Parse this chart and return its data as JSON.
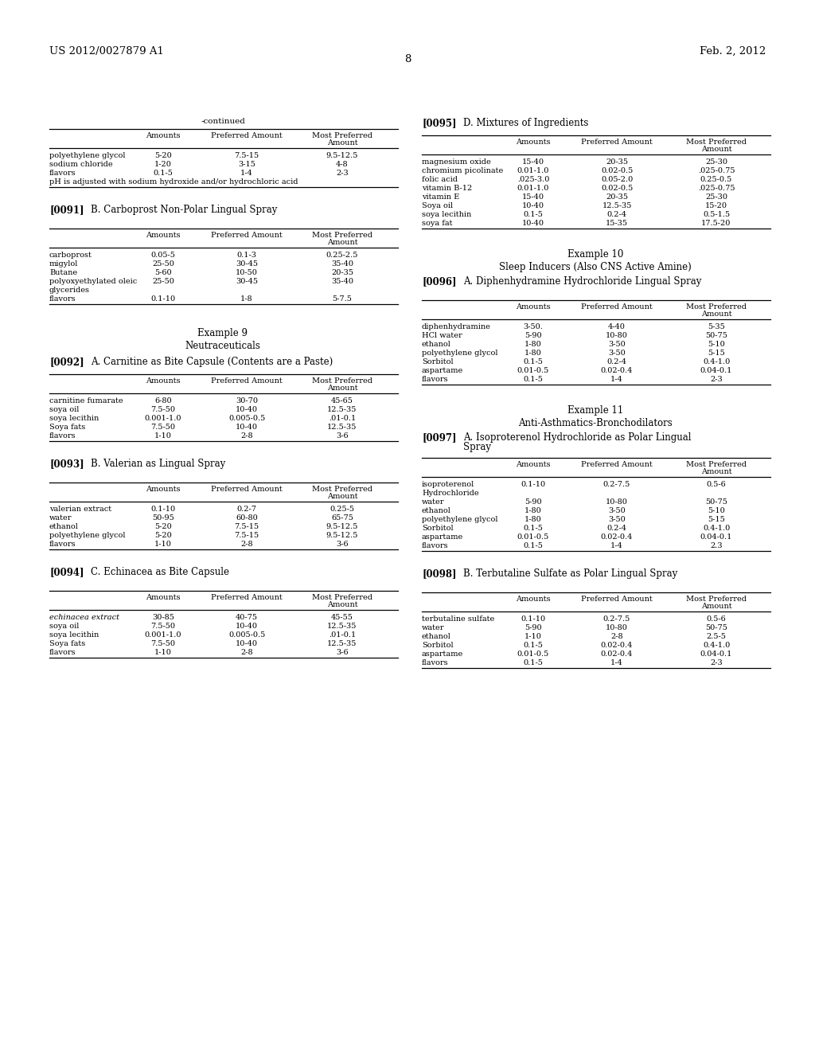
{
  "page_left": "US 2012/0027879 A1",
  "page_center": "8",
  "page_right": "Feb. 2, 2012",
  "bg_color": "#ffffff",
  "left_column": {
    "continued_title": "-continued",
    "continued_table": {
      "rows": [
        [
          "polyethylene glycol",
          "5-20",
          "7.5-15",
          "9.5-12.5"
        ],
        [
          "sodium chloride",
          "1-20",
          "3-15",
          "4-8"
        ],
        [
          "flavors",
          "0.1-5",
          "1-4",
          "2-3"
        ]
      ],
      "footnote": "pH is adjusted with sodium hydroxide and/or hydrochloric acid"
    },
    "section_b": {
      "ref": "[0091]",
      "title": "B. Carboprost Non-Polar Lingual Spray",
      "table_rows": [
        [
          "carboprost",
          "0.05-5",
          "0.1-3",
          "0.25-2.5"
        ],
        [
          "migylol",
          "25-50",
          "30-45",
          "35-40"
        ],
        [
          "Butane",
          "5-60",
          "10-50",
          "20-35"
        ],
        [
          "polyoxyethylated oleic",
          "25-50",
          "30-45",
          "35-40"
        ],
        [
          "glycerides",
          "",
          "",
          ""
        ],
        [
          "flavors",
          "0.1-10",
          "1-8",
          "5-7.5"
        ]
      ]
    },
    "example9": {
      "title": "Example 9",
      "subtitle": "Neutraceuticals",
      "section_a": {
        "ref": "[0092]",
        "title": "A. Carnitine as Bite Capsule (Contents are a Paste)",
        "table_rows": [
          [
            "carnitine fumarate",
            "6-80",
            "30-70",
            "45-65"
          ],
          [
            "soya oil",
            "7.5-50",
            "10-40",
            "12.5-35"
          ],
          [
            "soya lecithin",
            "0.001-1.0",
            "0.005-0.5",
            ".01-0.1"
          ],
          [
            "Soya fats",
            "7.5-50",
            "10-40",
            "12.5-35"
          ],
          [
            "flavors",
            "1-10",
            "2-8",
            "3-6"
          ]
        ]
      },
      "section_b": {
        "ref": "[0093]",
        "title": "B. Valerian as Lingual Spray",
        "table_rows": [
          [
            "valerian extract",
            "0.1-10",
            "0.2-7",
            "0.25-5"
          ],
          [
            "water",
            "50-95",
            "60-80",
            "65-75"
          ],
          [
            "ethanol",
            "5-20",
            "7.5-15",
            "9.5-12.5"
          ],
          [
            "polyethylene glycol",
            "5-20",
            "7.5-15",
            "9.5-12.5"
          ],
          [
            "flavors",
            "1-10",
            "2-8",
            "3-6"
          ]
        ]
      },
      "section_c": {
        "ref": "[0094]",
        "title": "C. Echinacea as Bite Capsule",
        "table_rows": [
          [
            "echinacea extract",
            "30-85",
            "40-75",
            "45-55",
            "italic"
          ],
          [
            "soya oil",
            "7.5-50",
            "10-40",
            "12.5-35"
          ],
          [
            "soya lecithin",
            "0.001-1.0",
            "0.005-0.5",
            ".01-0.1"
          ],
          [
            "Soya fats",
            "7.5-50",
            "10-40",
            "12.5-35"
          ],
          [
            "flavors",
            "1-10",
            "2-8",
            "3-6"
          ]
        ]
      }
    }
  },
  "right_column": {
    "section_d": {
      "ref": "[0095]",
      "title": "D. Mixtures of Ingredients",
      "table_rows": [
        [
          "magnesium oxide",
          "15-40",
          "20-35",
          "25-30"
        ],
        [
          "chromium picolinate",
          "0.01-1.0",
          "0.02-0.5",
          ".025-0.75"
        ],
        [
          "folic acid",
          ".025-3.0",
          "0.05-2.0",
          "0.25-0.5"
        ],
        [
          "vitamin B-12",
          "0.01-1.0",
          "0.02-0.5",
          ".025-0.75"
        ],
        [
          "vitamin E",
          "15-40",
          "20-35",
          "25-30"
        ],
        [
          "Soya oil",
          "10-40",
          "12.5-35",
          "15-20"
        ],
        [
          "soya lecithin",
          "0.1-5",
          "0.2-4",
          "0.5-1.5"
        ],
        [
          "soya fat",
          "10-40",
          "15-35",
          "17.5-20"
        ]
      ]
    },
    "example10": {
      "title": "Example 10",
      "subtitle": "Sleep Inducers (Also CNS Active Amine)",
      "section_a": {
        "ref": "[0096]",
        "title": "A. Diphenhydramine Hydrochloride Lingual Spray",
        "table_rows": [
          [
            "diphenhydramine",
            "3-50.",
            "4-40",
            "5-35"
          ],
          [
            "HCl water",
            "5-90",
            "10-80",
            "50-75"
          ],
          [
            "ethanol",
            "1-80",
            "3-50",
            "5-10"
          ],
          [
            "polyethylene glycol",
            "1-80",
            "3-50",
            "5-15"
          ],
          [
            "Sorbitol",
            "0.1-5",
            "0.2-4",
            "0.4-1.0"
          ],
          [
            "aspartame",
            "0.01-0.5",
            "0.02-0.4",
            "0.04-0.1"
          ],
          [
            "flavors",
            "0.1-5",
            "1-4",
            "2-3"
          ]
        ]
      }
    },
    "example11": {
      "title": "Example 11",
      "subtitle": "Anti-Asthmatics-Bronchodilators",
      "section_a": {
        "ref": "[0097]",
        "title_line1": "A. Isoproterenol Hydrochloride as Polar Lingual",
        "title_line2": "Spray",
        "table_rows": [
          [
            "isoproterenol",
            "0.1-10",
            "0.2-7.5",
            "0.5-6"
          ],
          [
            "Hydrochloride",
            "",
            "",
            ""
          ],
          [
            "water",
            "5-90",
            "10-80",
            "50-75"
          ],
          [
            "ethanol",
            "1-80",
            "3-50",
            "5-10"
          ],
          [
            "polyethylene glycol",
            "1-80",
            "3-50",
            "5-15"
          ],
          [
            "Sorbitol",
            "0.1-5",
            "0.2-4",
            "0.4-1.0"
          ],
          [
            "aspartame",
            "0.01-0.5",
            "0.02-0.4",
            "0.04-0.1"
          ],
          [
            "flavors",
            "0.1-5",
            "1-4",
            "2.3"
          ]
        ]
      },
      "section_b": {
        "ref": "[0098]",
        "title": "B. Terbutaline Sulfate as Polar Lingual Spray",
        "table_rows": [
          [
            "terbutaline sulfate",
            "0.1-10",
            "0.2-7.5",
            "0.5-6"
          ],
          [
            "water",
            "5-90",
            "10-80",
            "50-75"
          ],
          [
            "ethanol",
            "1-10",
            "2-8",
            "2.5-5"
          ],
          [
            "Sorbitol",
            "0.1-5",
            "0.02-0.4",
            "0.4-1.0"
          ],
          [
            "aspartame",
            "0.01-0.5",
            "0.02-0.4",
            "0.04-0.1"
          ],
          [
            "flavors",
            "0.1-5",
            "1-4",
            "2-3"
          ]
        ]
      }
    }
  }
}
